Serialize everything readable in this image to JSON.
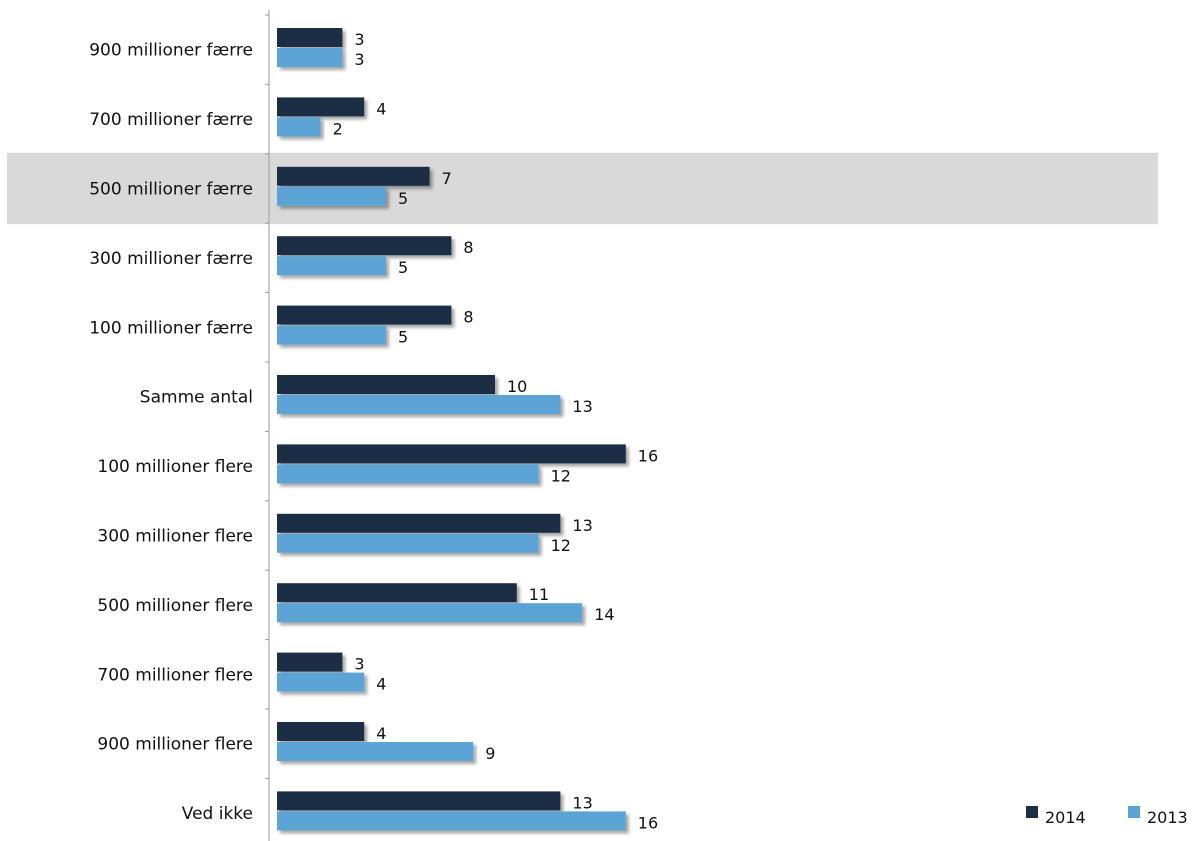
{
  "chart_data": {
    "type": "bar",
    "orientation": "horizontal",
    "categories": [
      "900 millioner færre",
      "700 millioner færre",
      "500 millioner færre",
      "300 millioner færre",
      "100 millioner færre",
      "Samme antal",
      "100 millioner flere",
      "300 millioner flere",
      "500 millioner flere",
      "700 millioner flere",
      "900 millioner flere",
      "Ved ikke"
    ],
    "series": [
      {
        "name": "2014",
        "color": "#1b2f45",
        "values": [
          3,
          4,
          7,
          8,
          8,
          10,
          16,
          13,
          11,
          3,
          4,
          13
        ]
      },
      {
        "name": "2013",
        "color": "#5ba3d6",
        "values": [
          3,
          2,
          5,
          5,
          5,
          13,
          12,
          12,
          14,
          4,
          9,
          16
        ]
      }
    ],
    "highlighted_category": "500 millioner færre",
    "highlight_color": "#d9d9d9",
    "legend_position": "bottom-right",
    "grid": false,
    "xlim": [
      0,
      16
    ]
  }
}
